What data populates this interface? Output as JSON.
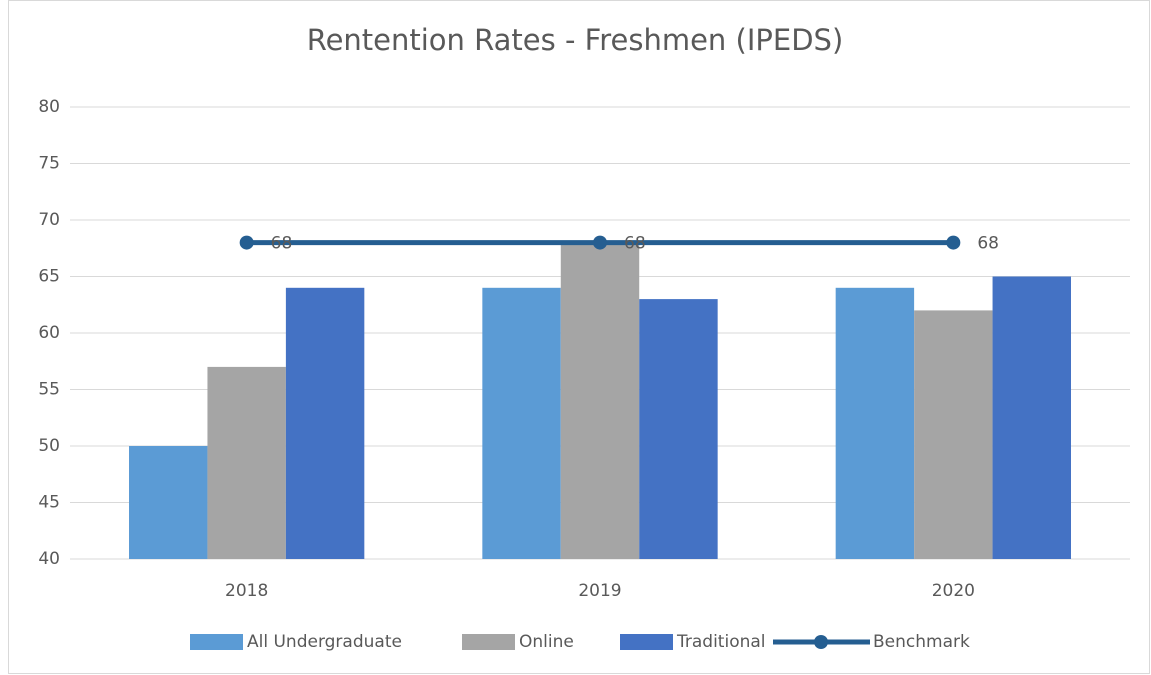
{
  "chart_data": {
    "type": "bar",
    "title": "Rentention Rates - Freshmen (IPEDS)",
    "categories": [
      "2018",
      "2019",
      "2020"
    ],
    "series": [
      {
        "name": "All Undergraduate",
        "color": "#5b9bd5",
        "values": [
          50,
          64,
          64
        ]
      },
      {
        "name": "Online",
        "color": "#a5a5a5",
        "values": [
          57,
          68,
          62
        ]
      },
      {
        "name": "Traditional",
        "color": "#4472c4",
        "values": [
          64,
          63,
          65
        ]
      },
      {
        "name": "Benchmark",
        "color": "#255e91",
        "type": "line",
        "values": [
          68,
          68,
          68
        ]
      }
    ],
    "ylim": [
      40,
      80
    ],
    "yticks": [
      40,
      45,
      50,
      55,
      60,
      65,
      70,
      75,
      80
    ],
    "grid": true,
    "legend": "bottom"
  }
}
